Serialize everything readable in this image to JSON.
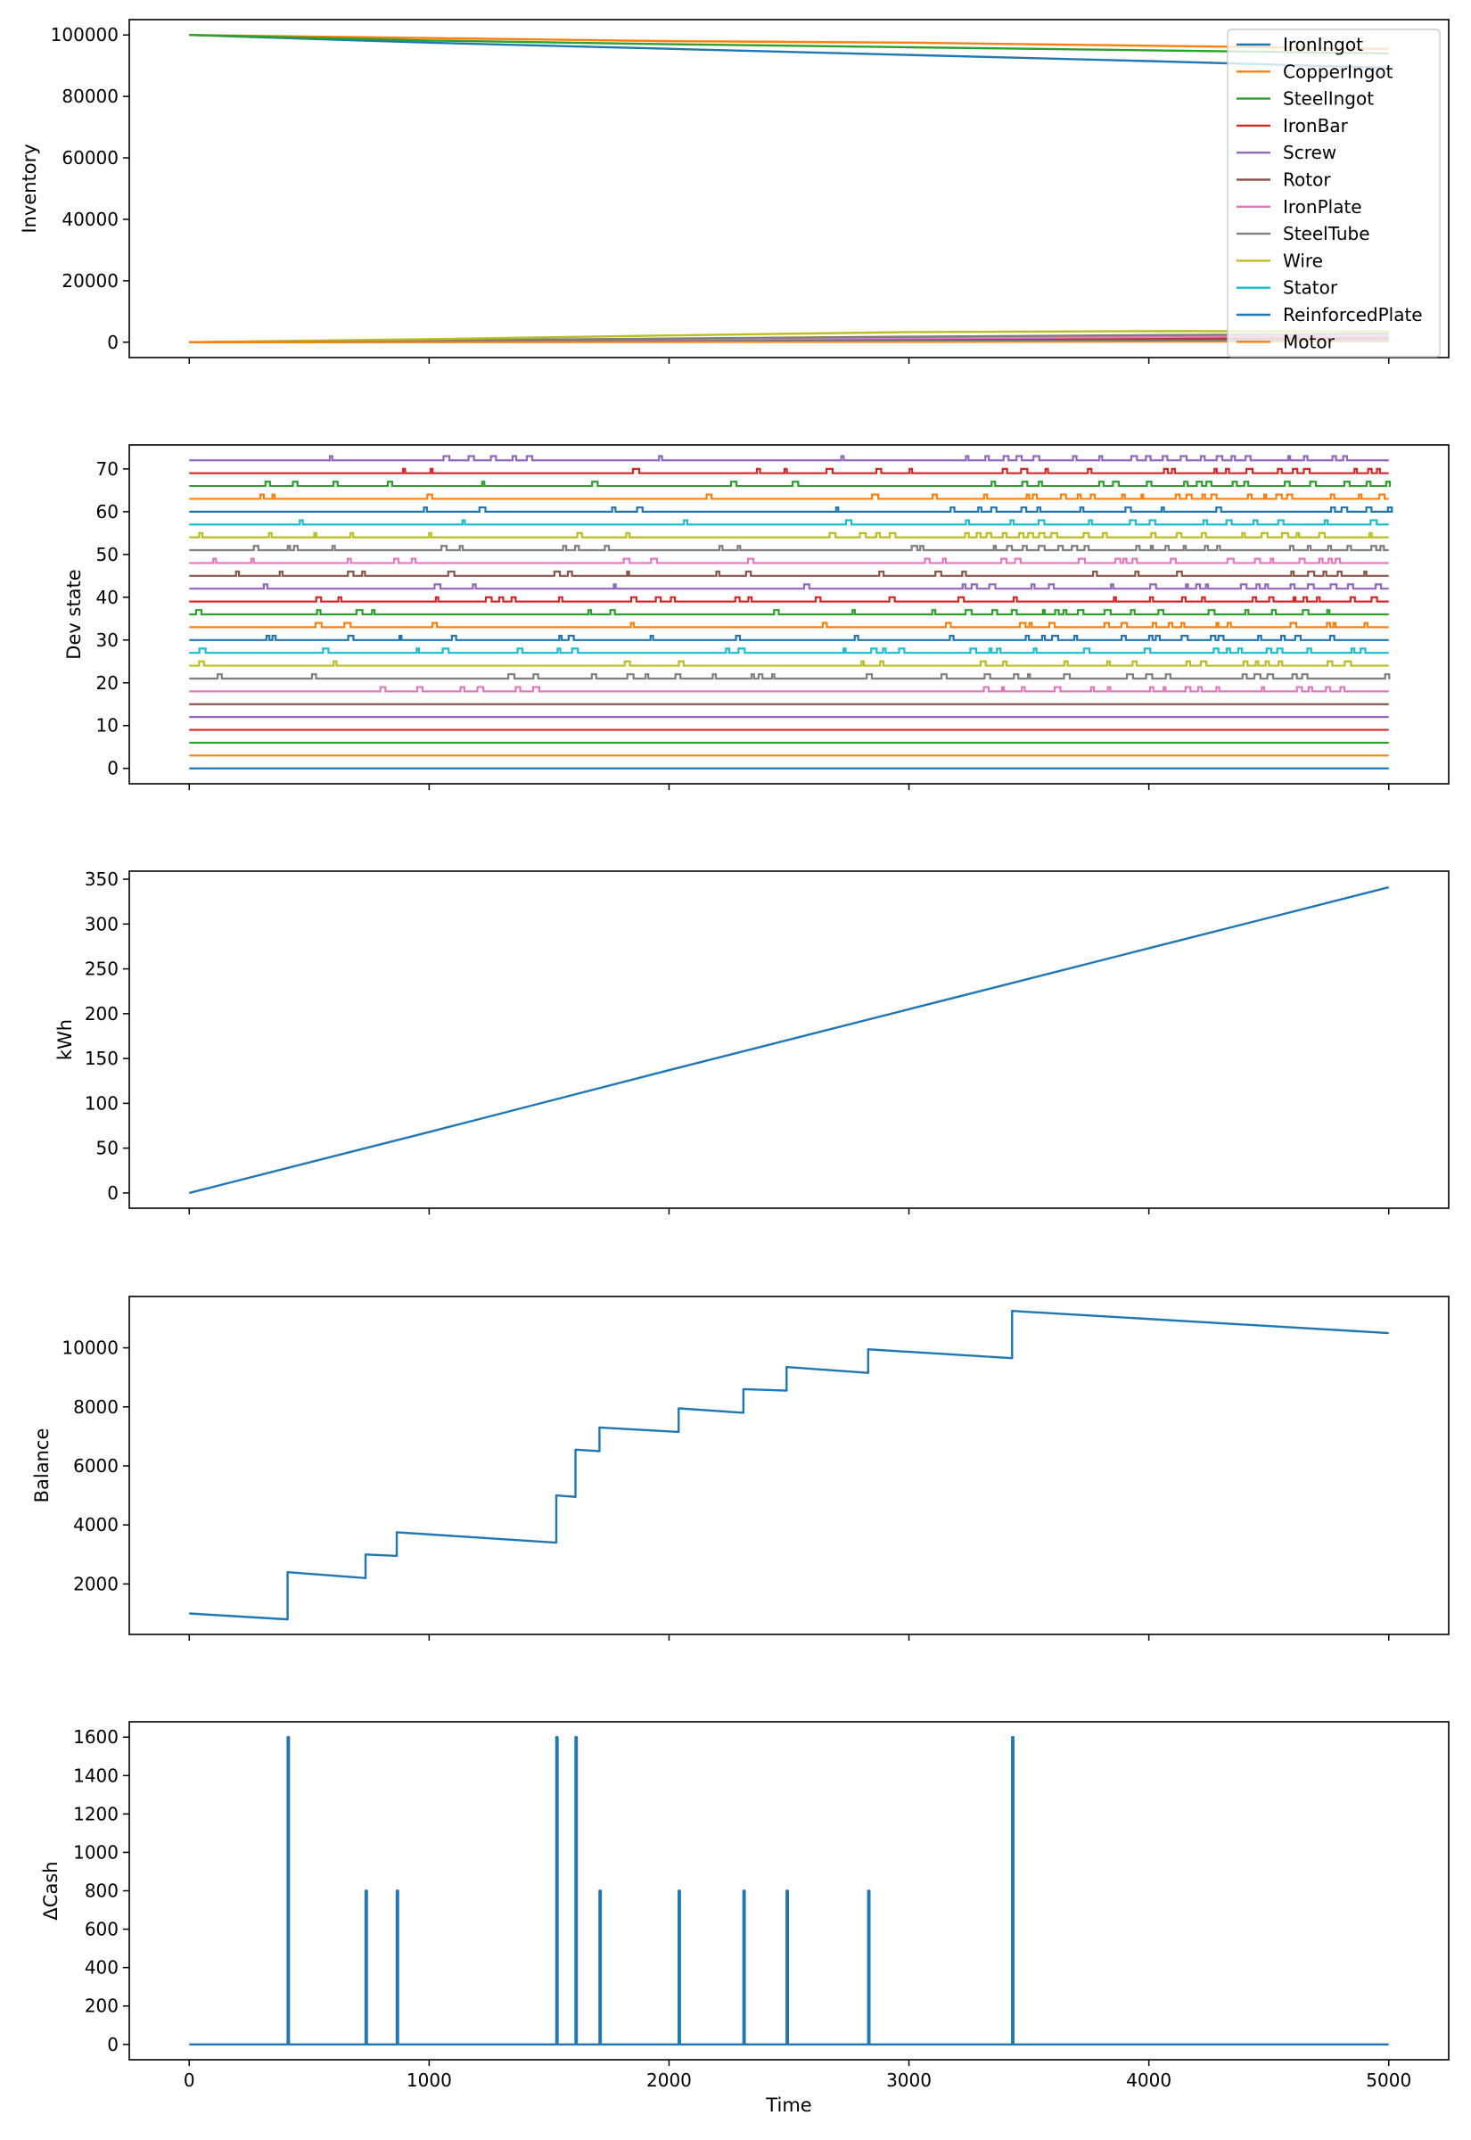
{
  "chart_data": [
    {
      "type": "line",
      "ylabel": "Inventory",
      "xlim": [
        -250,
        5250
      ],
      "ylim": [
        -5000,
        105000
      ],
      "yticks": [
        0,
        20000,
        40000,
        60000,
        80000,
        100000
      ],
      "legend": {
        "placement": "upper-right"
      },
      "series": [
        {
          "name": "IronIngot",
          "color": "#1f77b4",
          "points": [
            [
              0,
              100000
            ],
            [
              1000,
              97500
            ],
            [
              2000,
              95500
            ],
            [
              3000,
              93500
            ],
            [
              4000,
              91500
            ],
            [
              5000,
              89300
            ]
          ]
        },
        {
          "name": "CopperIngot",
          "color": "#ff7f0e",
          "points": [
            [
              0,
              100000
            ],
            [
              1000,
              99000
            ],
            [
              2000,
              98000
            ],
            [
              3000,
              97500
            ],
            [
              4000,
              96500
            ],
            [
              5000,
              95500
            ]
          ]
        },
        {
          "name": "SteelIngot",
          "color": "#2ca02c",
          "points": [
            [
              0,
              100000
            ],
            [
              1000,
              98200
            ],
            [
              2000,
              97000
            ],
            [
              3000,
              96000
            ],
            [
              4000,
              95000
            ],
            [
              5000,
              94000
            ]
          ]
        },
        {
          "name": "IronBar",
          "color": "#d62728",
          "points": [
            [
              0,
              0
            ],
            [
              1000,
              300
            ],
            [
              2000,
              600
            ],
            [
              3000,
              900
            ],
            [
              4000,
              1200
            ],
            [
              5000,
              1500
            ]
          ]
        },
        {
          "name": "Screw",
          "color": "#9467bd",
          "points": [
            [
              0,
              0
            ],
            [
              1000,
              500
            ],
            [
              2000,
              1000
            ],
            [
              3000,
              1500
            ],
            [
              4000,
              1900
            ],
            [
              5000,
              2300
            ]
          ]
        },
        {
          "name": "Rotor",
          "color": "#8c564b",
          "points": [
            [
              0,
              0
            ],
            [
              1000,
              200
            ],
            [
              2000,
              400
            ],
            [
              3000,
              600
            ],
            [
              4000,
              800
            ],
            [
              5000,
              1000
            ]
          ]
        },
        {
          "name": "IronPlate",
          "color": "#e377c2",
          "points": [
            [
              0,
              0
            ],
            [
              1000,
              400
            ],
            [
              2000,
              900
            ],
            [
              3000,
              1300
            ],
            [
              4000,
              1700
            ],
            [
              5000,
              2100
            ]
          ]
        },
        {
          "name": "SteelTube",
          "color": "#7f7f7f",
          "points": [
            [
              0,
              0
            ],
            [
              1000,
              600
            ],
            [
              2000,
              1200
            ],
            [
              3000,
              1800
            ],
            [
              4000,
              2300
            ],
            [
              5000,
              2800
            ]
          ]
        },
        {
          "name": "Wire",
          "color": "#bcbd22",
          "points": [
            [
              0,
              0
            ],
            [
              1000,
              1000
            ],
            [
              2000,
              2200
            ],
            [
              3000,
              3300
            ],
            [
              4000,
              3600
            ],
            [
              5000,
              3500
            ]
          ]
        },
        {
          "name": "Stator",
          "color": "#17becf",
          "points": [
            [
              0,
              0
            ],
            [
              1000,
              100
            ],
            [
              2000,
              200
            ],
            [
              3000,
              300
            ],
            [
              4000,
              400
            ],
            [
              5000,
              500
            ]
          ]
        },
        {
          "name": "ReinforcedPlate",
          "color": "#1f77b4",
          "points": [
            [
              0,
              0
            ],
            [
              1000,
              150
            ],
            [
              2000,
              300
            ],
            [
              3000,
              450
            ],
            [
              4000,
              600
            ],
            [
              5000,
              700
            ]
          ]
        },
        {
          "name": "Motor",
          "color": "#ff7f0e",
          "points": [
            [
              0,
              0
            ],
            [
              1000,
              50
            ],
            [
              2000,
              100
            ],
            [
              3000,
              150
            ],
            [
              4000,
              200
            ],
            [
              5000,
              250
            ]
          ]
        }
      ]
    },
    {
      "type": "line",
      "ylabel": "Dev state",
      "xlim": [
        -250,
        5250
      ],
      "ylim": [
        -3.6,
        75.6
      ],
      "yticks": [
        0,
        10,
        20,
        30,
        40,
        50,
        60,
        70
      ],
      "levels": [
        0,
        3,
        6,
        9,
        12,
        15,
        18,
        21,
        24,
        27,
        30,
        33,
        36,
        39,
        42,
        45,
        48,
        51,
        54,
        57,
        60,
        63,
        66,
        69,
        72
      ],
      "level_colors": [
        "#1f77b4",
        "#ff7f0e",
        "#2ca02c",
        "#d62728",
        "#9467bd",
        "#8c564b",
        "#e377c2",
        "#7f7f7f",
        "#bcbd22",
        "#17becf",
        "#1f77b4",
        "#ff7f0e",
        "#2ca02c",
        "#d62728",
        "#9467bd",
        "#8c564b",
        "#e377c2",
        "#7f7f7f",
        "#bcbd22",
        "#17becf",
        "#1f77b4",
        "#ff7f0e",
        "#2ca02c",
        "#d62728",
        "#9467bd"
      ],
      "active_levels": [
        18,
        21,
        24,
        27,
        30,
        33,
        36,
        39,
        42,
        45,
        48,
        51,
        54,
        57,
        60,
        63,
        66,
        69,
        72
      ]
    },
    {
      "type": "line",
      "ylabel": "kWh",
      "xlim": [
        -250,
        5250
      ],
      "ylim": [
        -17,
        359
      ],
      "yticks": [
        0,
        50,
        100,
        150,
        200,
        250,
        300,
        350
      ],
      "series": [
        {
          "color": "#1f77b4",
          "points": [
            [
              0,
              0
            ],
            [
              1000,
              68
            ],
            [
              2000,
              137
            ],
            [
              3000,
              205
            ],
            [
              4000,
              273
            ],
            [
              5000,
              341
            ]
          ]
        }
      ]
    },
    {
      "type": "line",
      "ylabel": "Balance",
      "xlim": [
        -250,
        5250
      ],
      "ylim": [
        290,
        11740
      ],
      "yticks": [
        2000,
        4000,
        6000,
        8000,
        10000
      ],
      "series": [
        {
          "color": "#1f77b4",
          "points": [
            [
              0,
              1000
            ],
            [
              410,
              800
            ],
            [
              410,
              2400
            ],
            [
              735,
              2200
            ],
            [
              735,
              3000
            ],
            [
              865,
              2950
            ],
            [
              865,
              3750
            ],
            [
              1530,
              3400
            ],
            [
              1530,
              5000
            ],
            [
              1610,
              4950
            ],
            [
              1610,
              6550
            ],
            [
              1710,
              6500
            ],
            [
              1710,
              7300
            ],
            [
              2040,
              7150
            ],
            [
              2040,
              7950
            ],
            [
              2310,
              7800
            ],
            [
              2310,
              8600
            ],
            [
              2490,
              8550
            ],
            [
              2490,
              9350
            ],
            [
              2830,
              9150
            ],
            [
              2830,
              9950
            ],
            [
              3430,
              9650
            ],
            [
              3430,
              11250
            ],
            [
              5000,
              10500
            ]
          ]
        }
      ]
    },
    {
      "type": "line",
      "ylabel": "ΔCash",
      "xlabel": "Time",
      "xlim": [
        -250,
        5250
      ],
      "ylim": [
        -80,
        1680
      ],
      "yticks": [
        0,
        200,
        400,
        600,
        800,
        1000,
        1200,
        1400,
        1600
      ],
      "xticks": [
        0,
        1000,
        2000,
        3000,
        4000,
        5000
      ],
      "series": [
        {
          "color": "#1f77b4",
          "spikes": [
            [
              410,
              1600
            ],
            [
              735,
              800
            ],
            [
              865,
              800
            ],
            [
              1530,
              1600
            ],
            [
              1610,
              1600
            ],
            [
              1710,
              800
            ],
            [
              2040,
              800
            ],
            [
              2310,
              800
            ],
            [
              2490,
              800
            ],
            [
              2830,
              800
            ],
            [
              3430,
              1600
            ]
          ],
          "range": [
            0,
            5000
          ]
        }
      ]
    }
  ]
}
